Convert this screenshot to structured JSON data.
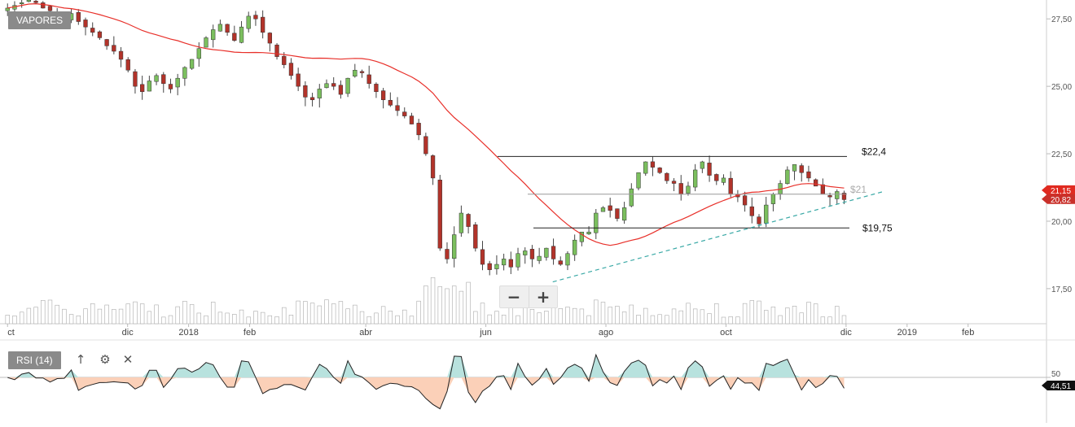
{
  "header": {
    "symbol": "VAPORES"
  },
  "indicator_panel": {
    "label": "RSI (14)",
    "move_icon": "arrow-up-icon",
    "settings_icon": "gear-icon",
    "close_icon": "close-icon"
  },
  "zoom": {
    "zoom_out_icon": "minus-icon",
    "zoom_in_icon": "plus-icon"
  },
  "colors": {
    "up": "#7bbf5e",
    "down": "#b2332a",
    "ma": "#e8302a",
    "trend": "#3aa9a6",
    "rsi_above": "#b8e2de",
    "rsi_below": "#fbd0b8",
    "price_badge": "#e02a20",
    "last_badge": "#c9302a"
  },
  "chart_data": [
    {
      "type": "candlestick",
      "ylim": [
        16.2,
        28.2
      ],
      "y_ticks": [
        "27,50",
        "25,00",
        "22,50",
        "20,00",
        "17,50"
      ],
      "x_tick_labels": [
        "ct",
        "dic",
        "2018",
        "feb",
        "abr",
        "jun",
        "ago",
        "oct",
        "dic",
        "2019",
        "feb"
      ],
      "grid": false,
      "price_badges": [
        "21,15",
        "20,82"
      ],
      "series": [
        {
          "kind": "ohlc",
          "x_start": "2017-10-01",
          "x_end": "2018-11-30",
          "close": [
            27.9,
            28.0,
            28.1,
            28.2,
            28.1,
            27.9,
            27.8,
            27.6,
            27.5,
            27.7,
            27.4,
            27.2,
            27.0,
            26.8,
            26.5,
            26.3,
            26.0,
            25.6,
            25.0,
            24.8,
            25.2,
            25.4,
            25.1,
            24.9,
            25.3,
            25.7,
            26.0,
            26.4,
            26.8,
            27.1,
            27.3,
            27.0,
            26.7,
            27.2,
            27.6,
            27.5,
            27.0,
            26.6,
            26.1,
            25.8,
            25.4,
            25.0,
            24.6,
            24.5,
            24.9,
            25.1,
            25.0,
            24.7,
            25.3,
            25.6,
            25.5,
            25.1,
            24.8,
            24.5,
            24.3,
            24.1,
            23.9,
            23.6,
            23.2,
            22.5,
            21.6,
            19.0,
            18.6,
            19.5,
            20.3,
            19.8,
            19.0,
            18.4,
            18.2,
            18.4,
            18.6,
            18.3,
            18.8,
            18.9,
            18.6,
            18.7,
            19.0,
            18.6,
            18.4,
            18.8,
            19.3,
            19.6,
            19.6,
            20.3,
            20.5,
            20.4,
            20.1,
            20.5,
            21.2,
            21.8,
            22.2,
            22.0,
            21.8,
            21.5,
            21.4,
            21.0,
            21.3,
            21.9,
            22.2,
            21.7,
            21.5,
            21.6,
            21.0,
            20.9,
            20.6,
            20.2,
            19.9,
            20.6,
            21.0,
            21.4,
            21.9,
            22.1,
            21.8,
            21.6,
            21.3,
            21.0,
            20.9,
            21.1,
            20.8
          ],
          "moving_average": "red line"
        }
      ],
      "horizontal_lines": [
        {
          "label": "$22,4",
          "value": 22.4
        },
        {
          "label": "$21",
          "value": 21.0
        },
        {
          "label": "$19,75",
          "value": 19.75
        }
      ],
      "trendline": {
        "from": [
          "2018-07-05",
          17.75
        ],
        "to": [
          "2018-12-20",
          21.1
        ]
      },
      "volume": "bars"
    },
    {
      "type": "area",
      "name": "RSI (14)",
      "ylim": [
        0,
        100
      ],
      "y_ticks": [
        "50"
      ],
      "last_value_label": "44,51",
      "midline": 50
    }
  ]
}
